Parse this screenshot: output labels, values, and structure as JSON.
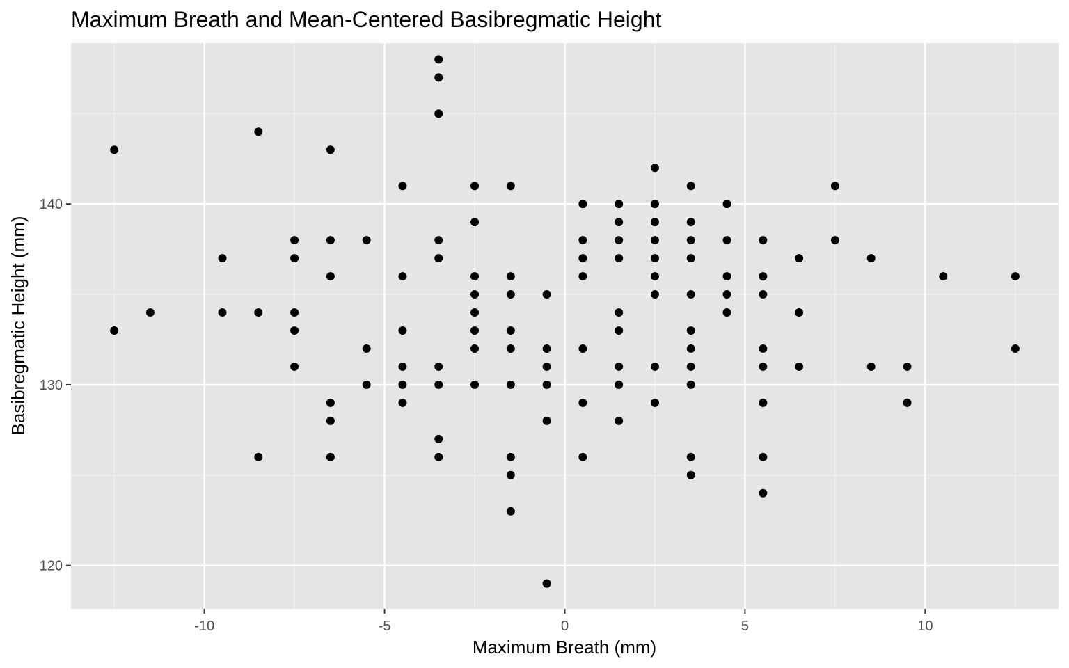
{
  "chart_data": {
    "type": "scatter",
    "title": "Maximum Breath and Mean-Centered Basibregmatic Height",
    "xlabel": "Maximum Breath (mm)",
    "ylabel": "Basibregmatic Height (mm)",
    "xlim": [
      -13.7,
      13.7
    ],
    "ylim": [
      117.6,
      148.9
    ],
    "x_ticks": [
      -10,
      -5,
      0,
      5,
      10
    ],
    "y_ticks": [
      120,
      130,
      140
    ],
    "x_tick_labels": [
      "-10",
      "-5",
      "0",
      "5",
      "10"
    ],
    "y_tick_labels": [
      "120",
      "130",
      "140"
    ],
    "grid": true,
    "legend": "none",
    "background": "#e5e5e5",
    "point_color": "#000000",
    "points": [
      [
        -12.5,
        143
      ],
      [
        -12.5,
        133
      ],
      [
        -11.5,
        134
      ],
      [
        -9.5,
        137
      ],
      [
        -9.5,
        134
      ],
      [
        -8.5,
        144
      ],
      [
        -8.5,
        134
      ],
      [
        -8.5,
        126
      ],
      [
        -7.5,
        138
      ],
      [
        -7.5,
        137
      ],
      [
        -7.5,
        134
      ],
      [
        -7.5,
        133
      ],
      [
        -7.5,
        131
      ],
      [
        -6.5,
        143
      ],
      [
        -6.5,
        138
      ],
      [
        -6.5,
        136
      ],
      [
        -6.5,
        129
      ],
      [
        -6.5,
        128
      ],
      [
        -6.5,
        126
      ],
      [
        -5.5,
        138
      ],
      [
        -5.5,
        132
      ],
      [
        -5.5,
        130
      ],
      [
        -4.5,
        141
      ],
      [
        -4.5,
        136
      ],
      [
        -4.5,
        133
      ],
      [
        -4.5,
        131
      ],
      [
        -4.5,
        130
      ],
      [
        -4.5,
        129
      ],
      [
        -3.5,
        148
      ],
      [
        -3.5,
        147
      ],
      [
        -3.5,
        145
      ],
      [
        -3.5,
        138
      ],
      [
        -3.5,
        137
      ],
      [
        -3.5,
        131
      ],
      [
        -3.5,
        130
      ],
      [
        -3.5,
        127
      ],
      [
        -3.5,
        126
      ],
      [
        -2.5,
        141
      ],
      [
        -2.5,
        139
      ],
      [
        -2.5,
        136
      ],
      [
        -2.5,
        135
      ],
      [
        -2.5,
        134
      ],
      [
        -2.5,
        133
      ],
      [
        -2.5,
        132
      ],
      [
        -2.5,
        130
      ],
      [
        -1.5,
        141
      ],
      [
        -1.5,
        136
      ],
      [
        -1.5,
        135
      ],
      [
        -1.5,
        133
      ],
      [
        -1.5,
        132
      ],
      [
        -1.5,
        130
      ],
      [
        -1.5,
        126
      ],
      [
        -1.5,
        125
      ],
      [
        -1.5,
        123
      ],
      [
        -0.5,
        135
      ],
      [
        -0.5,
        132
      ],
      [
        -0.5,
        131
      ],
      [
        -0.5,
        130
      ],
      [
        -0.5,
        128
      ],
      [
        -0.5,
        119
      ],
      [
        0.5,
        140
      ],
      [
        0.5,
        138
      ],
      [
        0.5,
        137
      ],
      [
        0.5,
        136
      ],
      [
        0.5,
        132
      ],
      [
        0.5,
        129
      ],
      [
        0.5,
        126
      ],
      [
        1.5,
        140
      ],
      [
        1.5,
        139
      ],
      [
        1.5,
        138
      ],
      [
        1.5,
        137
      ],
      [
        1.5,
        134
      ],
      [
        1.5,
        133
      ],
      [
        1.5,
        131
      ],
      [
        1.5,
        130
      ],
      [
        1.5,
        128
      ],
      [
        2.5,
        142
      ],
      [
        2.5,
        140
      ],
      [
        2.5,
        139
      ],
      [
        2.5,
        138
      ],
      [
        2.5,
        137
      ],
      [
        2.5,
        136
      ],
      [
        2.5,
        135
      ],
      [
        2.5,
        131
      ],
      [
        2.5,
        129
      ],
      [
        3.5,
        141
      ],
      [
        3.5,
        139
      ],
      [
        3.5,
        138
      ],
      [
        3.5,
        137
      ],
      [
        3.5,
        135
      ],
      [
        3.5,
        133
      ],
      [
        3.5,
        132
      ],
      [
        3.5,
        131
      ],
      [
        3.5,
        130
      ],
      [
        3.5,
        126
      ],
      [
        3.5,
        125
      ],
      [
        4.5,
        140
      ],
      [
        4.5,
        138
      ],
      [
        4.5,
        136
      ],
      [
        4.5,
        135
      ],
      [
        4.5,
        134
      ],
      [
        5.5,
        138
      ],
      [
        5.5,
        136
      ],
      [
        5.5,
        135
      ],
      [
        5.5,
        132
      ],
      [
        5.5,
        131
      ],
      [
        5.5,
        129
      ],
      [
        5.5,
        126
      ],
      [
        5.5,
        124
      ],
      [
        6.5,
        137
      ],
      [
        6.5,
        134
      ],
      [
        6.5,
        131
      ],
      [
        7.5,
        141
      ],
      [
        7.5,
        138
      ],
      [
        8.5,
        137
      ],
      [
        8.5,
        131
      ],
      [
        9.5,
        131
      ],
      [
        9.5,
        129
      ],
      [
        10.5,
        136
      ],
      [
        12.5,
        136
      ],
      [
        12.5,
        132
      ]
    ]
  }
}
